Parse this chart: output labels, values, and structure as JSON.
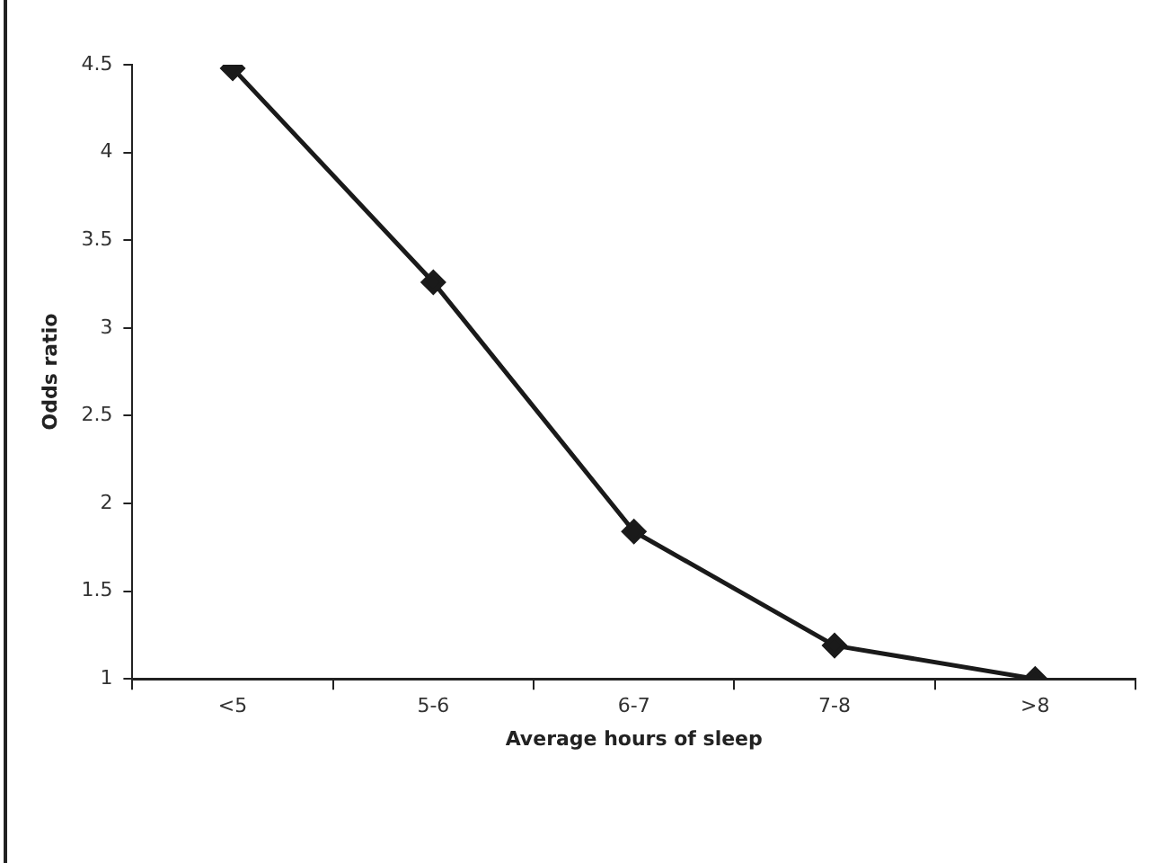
{
  "chart_data": {
    "type": "line",
    "xlabel": "Average hours of sleep",
    "ylabel": "Odds ratio",
    "categories": [
      "<5",
      "5-6",
      "6-7",
      "7-8",
      ">8"
    ],
    "series": [
      {
        "color": "#1a1a1a",
        "values": [
          4.48,
          3.26,
          1.84,
          1.19,
          1.0
        ]
      }
    ],
    "ylim": [
      1,
      4.5
    ],
    "yticks": [
      1,
      1.5,
      2,
      2.5,
      3,
      3.5,
      4,
      4.5
    ],
    "grid": false,
    "legend": false,
    "marker": "diamond",
    "line_style": "solid"
  }
}
